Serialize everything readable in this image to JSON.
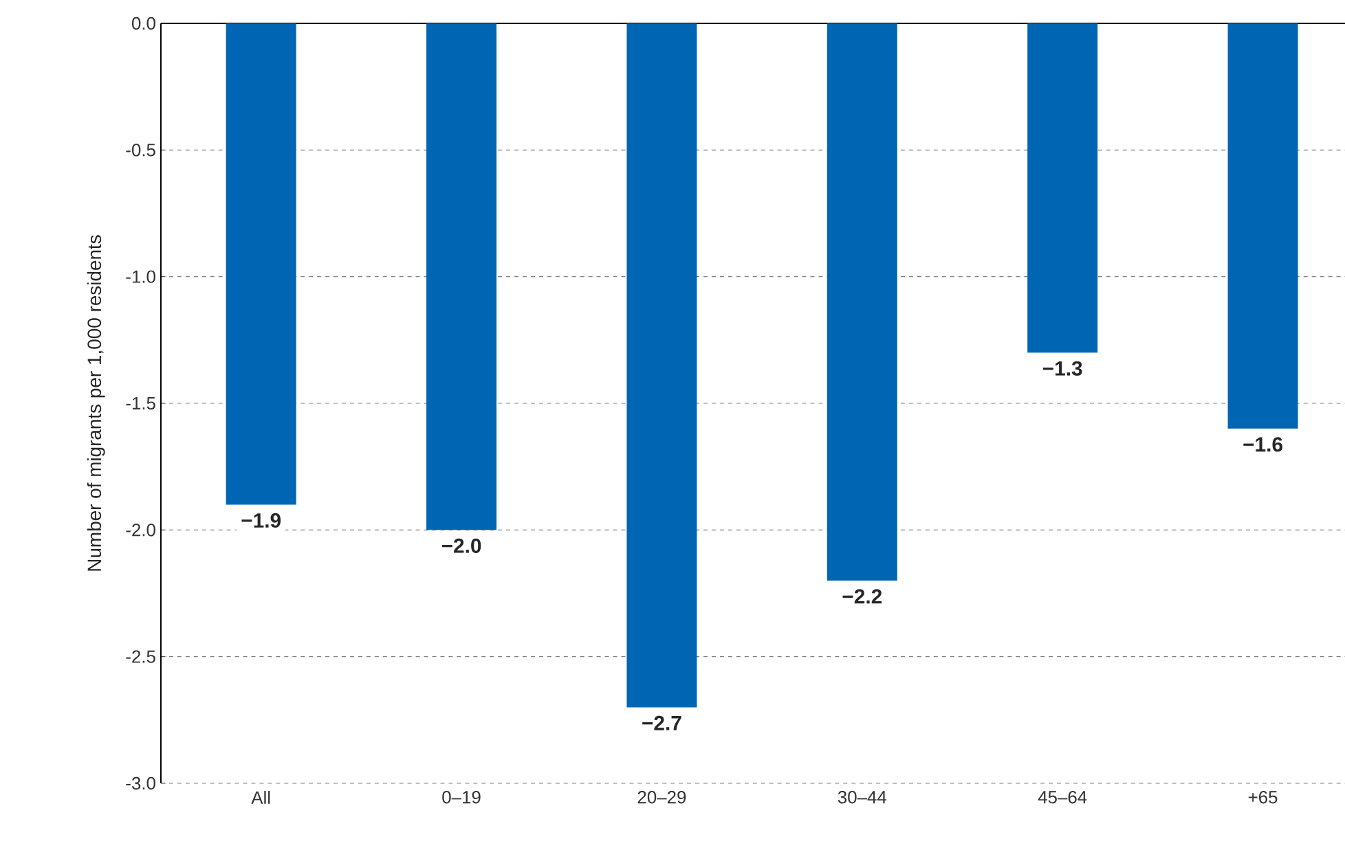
{
  "chart_data": {
    "type": "bar",
    "ylabel": "Number of migrants per 1,000 residents",
    "categories": [
      "All",
      "0–19",
      "20–29",
      "30–44",
      "45–64",
      "+65"
    ],
    "values": [
      -1.9,
      -2.0,
      -2.7,
      -2.2,
      -1.3,
      -1.6
    ],
    "value_labels": [
      "−1.9",
      "−2.0",
      "−2.7",
      "−2.2",
      "−1.3",
      "−1.6"
    ],
    "color": "#0066b3",
    "ylim": [
      -3.0,
      0.0
    ],
    "yticks": [
      {
        "value": 0.0,
        "label": "0.0"
      },
      {
        "value": -0.5,
        "label": "-0.5"
      },
      {
        "value": -1.0,
        "label": "-1.0"
      },
      {
        "value": -1.5,
        "label": "-1.5"
      },
      {
        "value": -2.0,
        "label": "-2.0"
      },
      {
        "value": -2.5,
        "label": "-2.5"
      },
      {
        "value": -3.0,
        "label": "-3.0"
      }
    ],
    "grid": "y"
  }
}
